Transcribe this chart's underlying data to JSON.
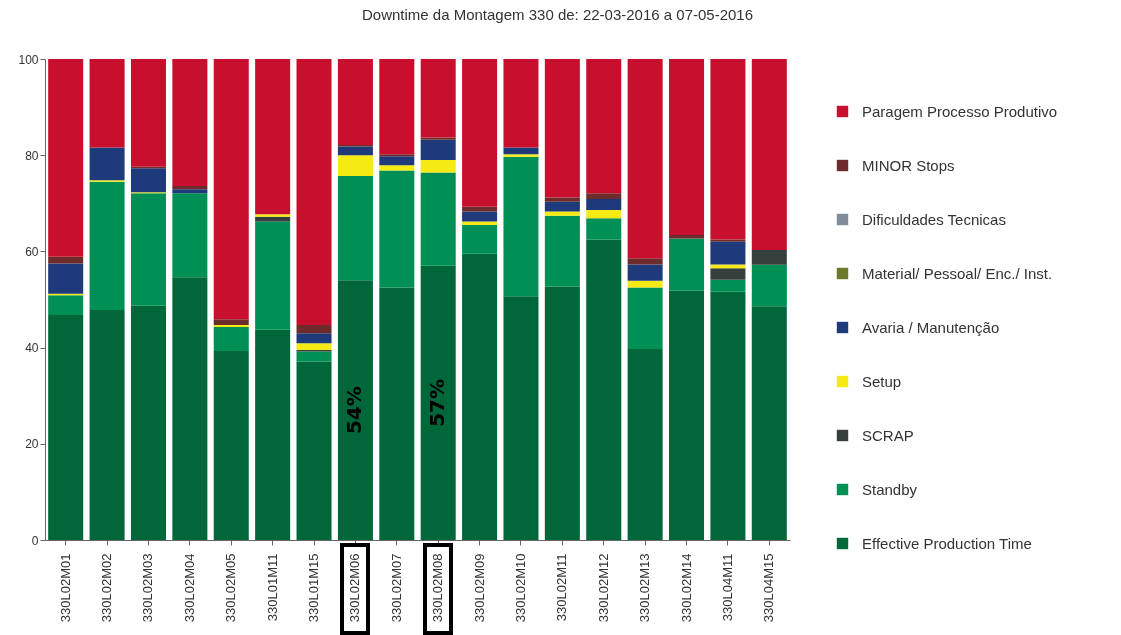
{
  "chart_data": {
    "type": "bar",
    "title": "Downtime da Montagem 330 de: 22-03-2016 a 07-05-2016",
    "stacked": true,
    "legend": "right",
    "grid": false,
    "categories": [
      "330L02M01",
      "330L02M02",
      "330L02M03",
      "330L02M04",
      "330L02M05",
      "330L01M11",
      "330L01M15",
      "330L02M06",
      "330L02M07",
      "330L02M08",
      "330L02M09",
      "330L02M10",
      "330L02M11",
      "330L02M12",
      "330L02M13",
      "330L02M14",
      "330L04M11",
      "330L04M15"
    ],
    "ylim": [
      0,
      100
    ],
    "yticks": [
      0,
      20,
      40,
      60,
      80,
      100
    ],
    "series": [
      {
        "name": "Effective Production Time",
        "color": "#00673a",
        "values": [
          46.8,
          47.8,
          48.7,
          54.6,
          39.3,
          43.7,
          37.1,
          54,
          52.5,
          57,
          59.5,
          50.7,
          52.7,
          62.5,
          39.7,
          51.8,
          51.6,
          48.6
        ],
        "value_labels": [
          null,
          null,
          null,
          null,
          null,
          null,
          null,
          "54%",
          null,
          "57%",
          null,
          null,
          null,
          null,
          null,
          null,
          null,
          null
        ]
      },
      {
        "name": "Standby",
        "color": "#008f54",
        "values": [
          4.1,
          26.7,
          23.4,
          17.5,
          5.0,
          22.5,
          2.1,
          21.7,
          24.3,
          19.4,
          6.0,
          29.0,
          14.7,
          4.4,
          12.8,
          10.9,
          2.5,
          8.6
        ]
      },
      {
        "name": "SCRAP",
        "color": "#353f3c",
        "values": [
          null,
          null,
          null,
          null,
          null,
          1.0,
          0.3,
          null,
          null,
          null,
          null,
          null,
          null,
          null,
          null,
          null,
          2.4,
          3.1
        ]
      },
      {
        "name": "Setup",
        "color": "#f5ea14",
        "values": [
          0.3,
          0.3,
          0.2,
          null,
          0.4,
          0.5,
          1.4,
          4.3,
          1.1,
          2.6,
          0.7,
          0.5,
          0.9,
          1.7,
          1.4,
          null,
          0.8,
          null
        ]
      },
      {
        "name": "Avaria / Manutenção",
        "color": "#1f3a7a",
        "values": [
          6.3,
          6.8,
          5.0,
          0.8,
          null,
          null,
          2.1,
          1.8,
          1.9,
          4.2,
          2.1,
          1.4,
          2.0,
          2.3,
          3.4,
          null,
          4.7,
          null
        ]
      },
      {
        "name": "Material/ Pessoal/ Enc./ Inst.",
        "color": "#6b7a2a",
        "values": [
          null,
          null,
          null,
          null,
          null,
          null,
          null,
          null,
          null,
          null,
          null,
          null,
          null,
          null,
          null,
          null,
          null,
          null
        ]
      },
      {
        "name": "Dificuldades Tecnicas",
        "color": "#7f8c99",
        "values": [
          null,
          null,
          null,
          null,
          null,
          null,
          null,
          null,
          null,
          null,
          null,
          null,
          null,
          null,
          null,
          null,
          null,
          null
        ]
      },
      {
        "name": "MINOR Stops",
        "color": "#6e2b2b",
        "values": [
          1.4,
          null,
          0.3,
          0.7,
          1.2,
          null,
          1.7,
          0.3,
          0.4,
          0.5,
          1.0,
          null,
          0.9,
          1.2,
          1.3,
          0.7,
          0.5,
          null
        ]
      },
      {
        "name": "Paragem Processo Produtivo",
        "color": "#c8102e",
        "values": [
          41.1,
          18.4,
          22.4,
          26.4,
          54.1,
          32.3,
          55.3,
          17.9,
          19.8,
          16.3,
          30.7,
          18.4,
          28.8,
          27.9,
          41.4,
          36.6,
          37.5,
          39.7
        ]
      }
    ]
  }
}
